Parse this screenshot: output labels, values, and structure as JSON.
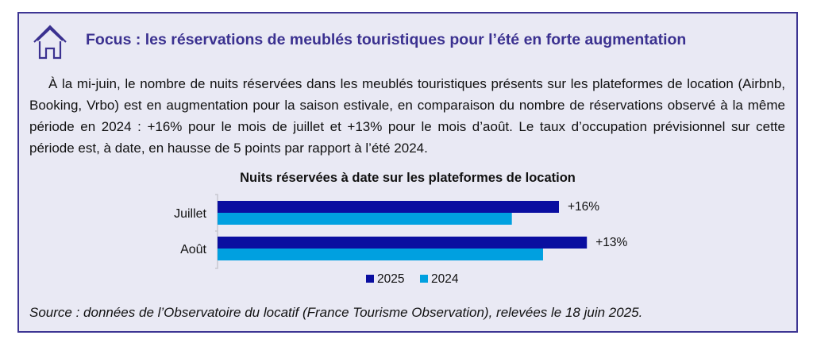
{
  "title": "Focus : les réservations de meublés touristiques pour l’été en forte augmentation",
  "paragraph": "À la mi-juin, le nombre de nuits réservées dans les meublés touristiques présents sur les plateformes de location (Airbnb, Booking, Vrbo) est en augmentation pour la saison estivale, en comparaison du nombre de réservations observé à la même période en 2024 : +16% pour le mois de juillet et +13% pour le mois d’août. Le taux d’occupation prévisionnel sur cette période est, à date, en hausse de 5 points par rapport à l’été 2024.",
  "source": "Source : données de l’Observatoire du locatif (France Tourisme Observation), relevées le 18 juin 2025.",
  "colors": {
    "series_2025": "#0a0ea0",
    "series_2024": "#00a0e0",
    "border": "#3d3593",
    "title": "#3b3190"
  },
  "chart_data": {
    "type": "bar",
    "orientation": "horizontal",
    "title": "Nuits réservées à date sur les plateformes de location",
    "categories": [
      "Juillet",
      "Août"
    ],
    "series": [
      {
        "name": "2025",
        "values": [
          116,
          125.5
        ]
      },
      {
        "name": "2024",
        "values": [
          100,
          110.6
        ]
      }
    ],
    "data_labels": [
      "+16%",
      "+13%"
    ],
    "value_note": "relative index (Juillet 2024 = 100), estimated from bar lengths",
    "legend_position": "bottom",
    "grid": false
  }
}
